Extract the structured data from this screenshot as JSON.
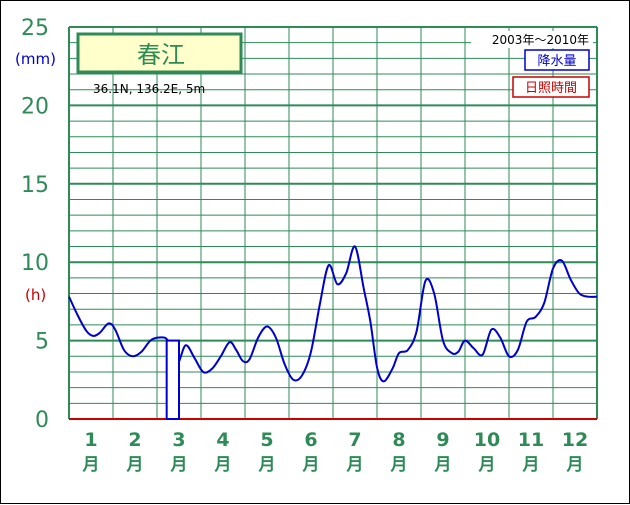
{
  "colors": {
    "grid": "#2e8b57",
    "axis_label": "#2e8b57",
    "precip": "#0000cc",
    "sunshine": "#cc0000",
    "title_fill": "#ffffcc",
    "title_border": "#2e8b57"
  },
  "chart_data": {
    "type": "bar",
    "station": "春江",
    "location": "36.1N,  136.2E,  5m",
    "period": "2003年～2010年",
    "legend": {
      "precip": "降水量",
      "sunshine": "日照時間",
      "placement": "top-right"
    },
    "y_unit_precip": "(mm)",
    "y_unit_sunshine": "(h)",
    "yticks": [
      "0",
      "5",
      "10",
      "15",
      "20",
      "25"
    ],
    "ylim": [
      0,
      25
    ],
    "grid": true,
    "month_numbers": [
      "1",
      "2",
      "3",
      "4",
      "5",
      "6",
      "7",
      "8",
      "9",
      "10",
      "11",
      "12"
    ],
    "month_char": "月",
    "precip_curve": {
      "x": [
        0.0,
        0.2,
        0.4,
        0.55,
        0.7,
        0.9,
        1.05,
        1.25,
        1.45,
        1.65,
        1.85,
        2.05,
        2.25,
        2.45,
        2.65,
        2.85,
        3.05,
        3.25,
        3.45,
        3.65,
        3.8,
        3.95,
        4.1,
        4.3,
        4.5,
        4.7,
        4.9,
        5.1,
        5.3,
        5.5,
        5.7,
        5.9,
        6.1,
        6.3,
        6.5,
        6.7,
        6.85,
        7.0,
        7.15,
        7.35,
        7.5,
        7.7,
        7.9,
        8.1,
        8.3,
        8.5,
        8.7,
        8.85,
        9.0,
        9.2,
        9.4,
        9.6,
        9.8,
        10.0,
        10.2,
        10.4,
        10.6,
        10.8,
        11.0,
        11.2,
        11.4,
        11.6,
        11.8,
        12.0
      ],
      "y": [
        7.8,
        6.6,
        5.6,
        5.3,
        5.5,
        6.1,
        5.7,
        4.4,
        4.0,
        4.3,
        5.0,
        5.2,
        5.0,
        3.5,
        4.7,
        3.9,
        3.0,
        3.2,
        4.0,
        4.9,
        4.4,
        3.7,
        3.8,
        5.2,
        5.9,
        5.2,
        3.5,
        2.5,
        2.8,
        4.3,
        7.3,
        9.8,
        8.6,
        9.3,
        11.0,
        8.3,
        6.2,
        3.3,
        2.4,
        3.2,
        4.2,
        4.4,
        5.6,
        8.8,
        8.0,
        5.0,
        4.2,
        4.3,
        5.0,
        4.5,
        4.1,
        5.7,
        5.2,
        4.0,
        4.4,
        6.2,
        6.5,
        7.4,
        9.6,
        10.1,
        8.9,
        8.0,
        7.8,
        7.8
      ]
    },
    "sunshine_bars": [
      {
        "month": "3",
        "x0": 2.22,
        "x1": 2.5,
        "value": 5.0
      }
    ]
  }
}
